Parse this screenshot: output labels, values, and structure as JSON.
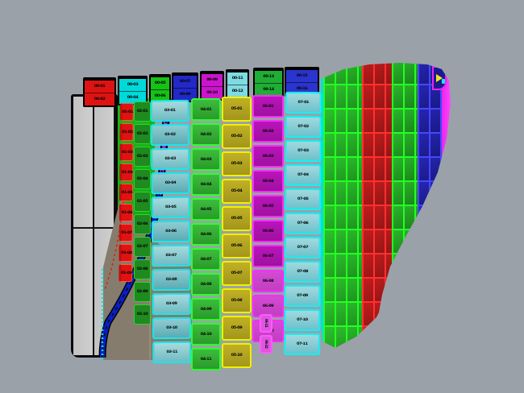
{
  "viewport": {
    "app": "3d-model-viewport",
    "background_color": "#9ba1a9",
    "description": "Shaded CAD viewport showing a curved paneled surface with color-coded labeled panels"
  },
  "palette": {
    "red": "#dd1313",
    "cyan": "#00d9d9",
    "green": "#15c215",
    "blue": "#2328c8",
    "magenta": "#cc14cc",
    "yellow": "#c0b024",
    "teal": "#6fbcc2",
    "gray_panel": "#c9c9c9",
    "shadow": "#857c6d",
    "tube_blue": "#0a1ecc",
    "tube_magenta": "#cc22cc"
  },
  "model": {
    "top_boxes": [
      {
        "color": "red",
        "labels": [
          "00-01",
          "00-02"
        ]
      },
      {
        "color": "cyan",
        "labels": [
          "00-03",
          "00-04"
        ]
      },
      {
        "color": "green",
        "labels": [
          "00-05",
          "00-06"
        ]
      },
      {
        "color": "blue",
        "labels": [
          "00-07",
          "00-08"
        ]
      },
      {
        "color": "magenta",
        "labels": [
          "00-09",
          "00-10"
        ]
      },
      {
        "color": "lightcyan",
        "labels": [
          "00-11",
          "00-12"
        ]
      },
      {
        "color": "green2",
        "labels": [
          "00-13",
          "00-14"
        ]
      },
      {
        "color": "blue2",
        "labels": [
          "00-15",
          "00-16"
        ]
      }
    ],
    "columns": [
      {
        "id": "col-red",
        "color": "red",
        "panels": [
          "01-01",
          "01-02",
          "01-03",
          "01-04",
          "01-05",
          "01-06",
          "01-07",
          "01-08",
          "01-09"
        ]
      },
      {
        "id": "col-dgreen",
        "color": "dark-green",
        "panels": [
          "02-01",
          "02-02",
          "02-03",
          "02-04",
          "02-05",
          "02-06",
          "02-07",
          "02-08",
          "02-09",
          "02-10"
        ]
      },
      {
        "id": "col-teal",
        "color": "teal",
        "panels": [
          "03-01",
          "03-02",
          "03-03",
          "03-04",
          "03-05",
          "03-06",
          "03-07",
          "03-08",
          "03-09",
          "03-10",
          "03-11"
        ]
      },
      {
        "id": "col-green",
        "color": "green",
        "panels": [
          "04-01",
          "04-02",
          "04-03",
          "04-04",
          "04-05",
          "04-06",
          "04-07",
          "04-08",
          "04-09",
          "04-10",
          "04-11"
        ]
      },
      {
        "id": "col-yellow",
        "color": "yellow",
        "panels": [
          "05-01",
          "05-02",
          "05-03",
          "05-04",
          "05-05",
          "05-06",
          "05-07",
          "05-08",
          "05-09",
          "05-10"
        ]
      },
      {
        "id": "col-magenta",
        "color": "magenta",
        "panels": [
          "06-01",
          "06-02",
          "06-03",
          "06-04",
          "06-05",
          "06-06",
          "06-07",
          "06-08",
          "06-09",
          "06-10"
        ]
      },
      {
        "id": "col-cyan2",
        "color": "cyan",
        "panels": [
          "07-01",
          "07-02",
          "07-03",
          "07-04",
          "07-05",
          "07-06",
          "07-07",
          "07-08",
          "07-09",
          "07-10",
          "07-11"
        ]
      },
      {
        "id": "col-mtabs",
        "color": "magenta",
        "panels": [
          "06-11",
          "06-12"
        ]
      }
    ]
  }
}
